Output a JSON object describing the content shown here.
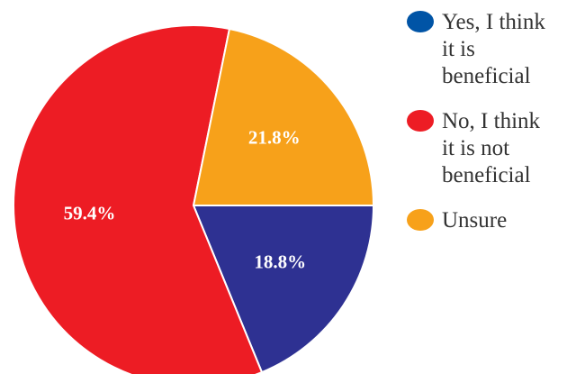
{
  "chart_data": {
    "type": "pie",
    "slices": [
      {
        "label": "Yes, I think it is beneficial",
        "value": 18.8,
        "value_label": "18.8%",
        "color": "#2e3192"
      },
      {
        "label": "No, I think it is not beneficial",
        "value": 59.4,
        "value_label": "59.4%",
        "color": "#ed1c24"
      },
      {
        "label": "Unsure",
        "value": 21.8,
        "value_label": "21.8%",
        "color": "#f7a11a"
      }
    ],
    "legend": {
      "placement": "right",
      "items": [
        {
          "label": "Yes, I think it is beneficial",
          "color": "#0054a6"
        },
        {
          "label": "No, I think it is not beneficial",
          "color": "#ed1c24"
        },
        {
          "label": "Unsure",
          "color": "#f7a11a"
        }
      ]
    }
  }
}
